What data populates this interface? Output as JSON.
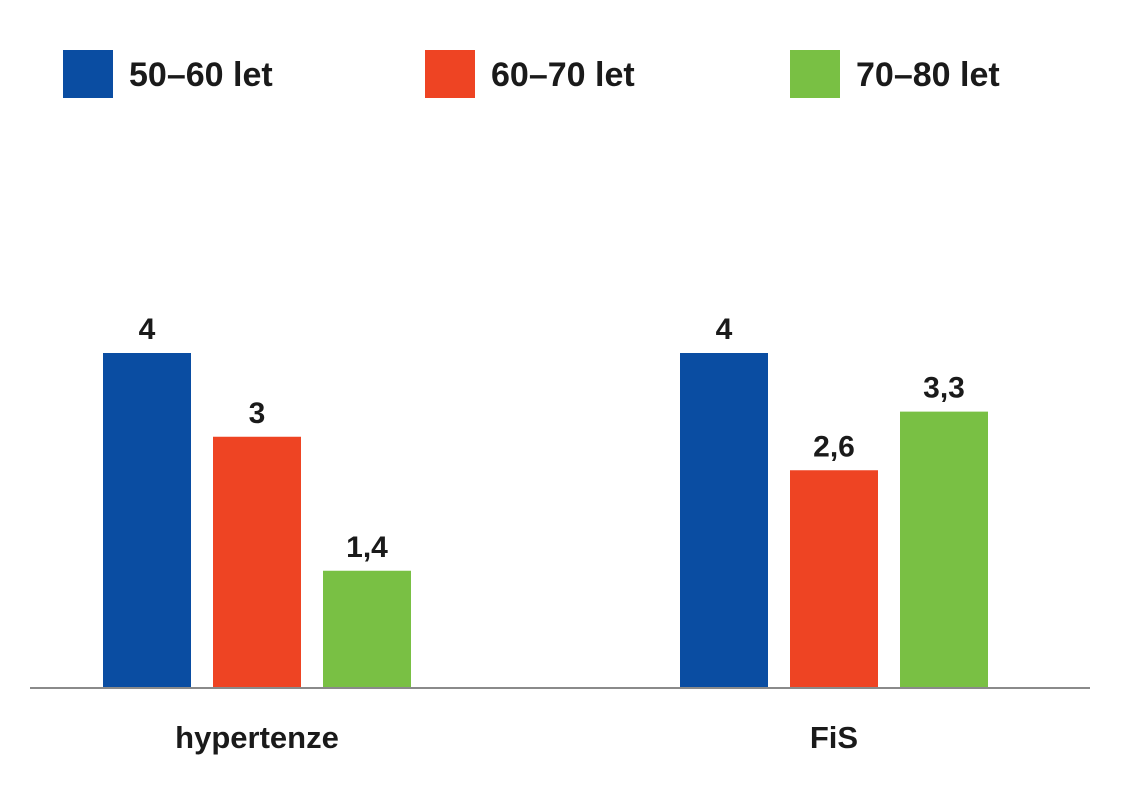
{
  "chart_data": {
    "type": "bar",
    "categories": [
      "hypertenze",
      "FiS"
    ],
    "series": [
      {
        "name": "50–60 let",
        "color": "#0a4da2",
        "values": [
          4,
          4
        ],
        "labels": [
          "4",
          "4"
        ]
      },
      {
        "name": "60–70 let",
        "color": "#ee4423",
        "values": [
          3,
          2.6
        ],
        "labels": [
          "3",
          "2,6"
        ]
      },
      {
        "name": "70–80 let",
        "color": "#79c044",
        "values": [
          1.4,
          3.3
        ],
        "labels": [
          "1,4",
          "3,3"
        ]
      }
    ],
    "ylim": [
      0,
      4
    ],
    "legend_position": "top",
    "grid": false
  }
}
